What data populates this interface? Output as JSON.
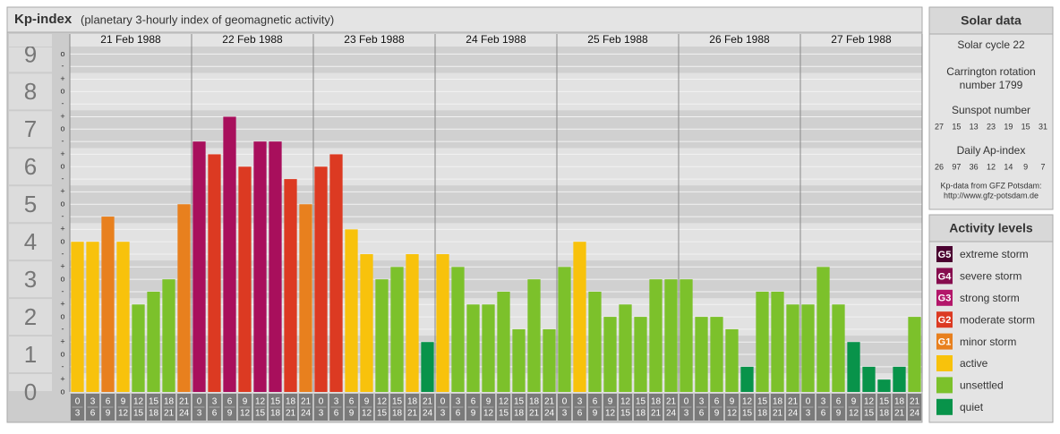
{
  "chart_data": {
    "type": "bar",
    "title": "Kp-index",
    "subtitle": "(planetary 3-hourly index of geomagnetic activity)",
    "days": [
      "21 Feb 1988",
      "22 Feb 1988",
      "23 Feb 1988",
      "24 Feb 1988",
      "25 Feb 1988",
      "26 Feb 1988",
      "27 Feb 1988"
    ],
    "hour_labels": [
      {
        "from": 0,
        "to": 3
      },
      {
        "from": 3,
        "to": 6
      },
      {
        "from": 6,
        "to": 9
      },
      {
        "from": 9,
        "to": 12
      },
      {
        "from": 12,
        "to": 15
      },
      {
        "from": 15,
        "to": 18
      },
      {
        "from": 18,
        "to": 21
      },
      {
        "from": 21,
        "to": 24
      }
    ],
    "values": [
      4,
      4,
      4.67,
      4,
      2.33,
      2.67,
      3,
      5,
      6.67,
      6.33,
      7.33,
      6,
      6.67,
      6.67,
      5.67,
      5,
      6,
      6.33,
      4.33,
      3.67,
      3,
      3.33,
      3.67,
      1.33,
      3.67,
      3.33,
      2.33,
      2.33,
      2.67,
      1.67,
      3,
      1.67,
      3.33,
      4,
      2.67,
      2,
      2.33,
      2,
      3,
      3,
      3,
      2,
      2,
      1.67,
      0.67,
      2.67,
      2.67,
      2.33,
      2.33,
      3.33,
      2.33,
      1.33,
      0.67,
      0.33,
      0.67,
      2
    ],
    "colors": [
      "#f8c20c",
      "#f8c20c",
      "#e8801e",
      "#f8c20c",
      "#7cc12b",
      "#7cc12b",
      "#7cc12b",
      "#e8801e",
      "#a80f5c",
      "#dc3a22",
      "#a80f5c",
      "#dc3a22",
      "#a80f5c",
      "#a80f5c",
      "#dc3a22",
      "#e8801e",
      "#dc3a22",
      "#dc3a22",
      "#f8c20c",
      "#f8c20c",
      "#7cc12b",
      "#7cc12b",
      "#f8c20c",
      "#08934a",
      "#f8c20c",
      "#7cc12b",
      "#7cc12b",
      "#7cc12b",
      "#7cc12b",
      "#7cc12b",
      "#7cc12b",
      "#7cc12b",
      "#7cc12b",
      "#f8c20c",
      "#7cc12b",
      "#7cc12b",
      "#7cc12b",
      "#7cc12b",
      "#7cc12b",
      "#7cc12b",
      "#7cc12b",
      "#7cc12b",
      "#7cc12b",
      "#7cc12b",
      "#08934a",
      "#7cc12b",
      "#7cc12b",
      "#7cc12b",
      "#7cc12b",
      "#7cc12b",
      "#7cc12b",
      "#08934a",
      "#08934a",
      "#08934a",
      "#08934a",
      "#7cc12b"
    ],
    "ylim": [
      0,
      9.2
    ],
    "yticks": [
      0,
      1,
      2,
      3,
      4,
      5,
      6,
      7,
      8,
      9
    ],
    "minor_ticks": [
      {
        "value": 0,
        "label": "o"
      },
      {
        "value": 0.33,
        "label": "+"
      },
      {
        "value": 0.67,
        "label": "-"
      },
      {
        "value": 1,
        "label": "o"
      },
      {
        "value": 1.33,
        "label": "+"
      },
      {
        "value": 1.67,
        "label": "-"
      },
      {
        "value": 2,
        "label": "o"
      },
      {
        "value": 2.33,
        "label": "+"
      },
      {
        "value": 2.67,
        "label": "-"
      },
      {
        "value": 3,
        "label": "o"
      },
      {
        "value": 3.33,
        "label": "+"
      },
      {
        "value": 3.67,
        "label": "-"
      },
      {
        "value": 4,
        "label": "o"
      },
      {
        "value": 4.33,
        "label": "+"
      },
      {
        "value": 4.67,
        "label": "-"
      },
      {
        "value": 5,
        "label": "o"
      },
      {
        "value": 5.33,
        "label": "+"
      },
      {
        "value": 5.67,
        "label": "-"
      },
      {
        "value": 6,
        "label": "o"
      },
      {
        "value": 6.33,
        "label": "+"
      },
      {
        "value": 6.67,
        "label": "-"
      },
      {
        "value": 7,
        "label": "o"
      },
      {
        "value": 7.33,
        "label": "+"
      },
      {
        "value": 7.67,
        "label": "-"
      },
      {
        "value": 8,
        "label": "o"
      },
      {
        "value": 8.33,
        "label": "+"
      },
      {
        "value": 8.67,
        "label": "-"
      },
      {
        "value": 9,
        "label": "o"
      }
    ]
  },
  "solar_data": {
    "title": "Solar data",
    "solar_cycle": "Solar cycle 22",
    "carrington": [
      "Carrington rotation",
      "number 1799"
    ],
    "sunspot_title": "Sunspot number",
    "sunspot": [
      27,
      15,
      13,
      23,
      19,
      15,
      31
    ],
    "ap_title": "Daily Ap-index",
    "ap": [
      26,
      97,
      36,
      12,
      14,
      9,
      7
    ],
    "source": [
      "Kp-data from GFZ Potsdam:",
      "http://www.gfz-potsdam.de"
    ]
  },
  "activity_levels": {
    "title": "Activity levels",
    "items": [
      {
        "badge": "G5",
        "name": "extreme storm",
        "color": "#4a0030"
      },
      {
        "badge": "G4",
        "name": "severe storm",
        "color": "#860c4e"
      },
      {
        "badge": "G3",
        "name": "strong storm",
        "color": "#b3166a"
      },
      {
        "badge": "G2",
        "name": "moderate storm",
        "color": "#dc3a22"
      },
      {
        "badge": "G1",
        "name": "minor storm",
        "color": "#e8801e"
      },
      {
        "name": "active",
        "color": "#f8c20c"
      },
      {
        "name": "unsettled",
        "color": "#7cc12b"
      },
      {
        "name": "quiet",
        "color": "#08934a"
      }
    ]
  }
}
